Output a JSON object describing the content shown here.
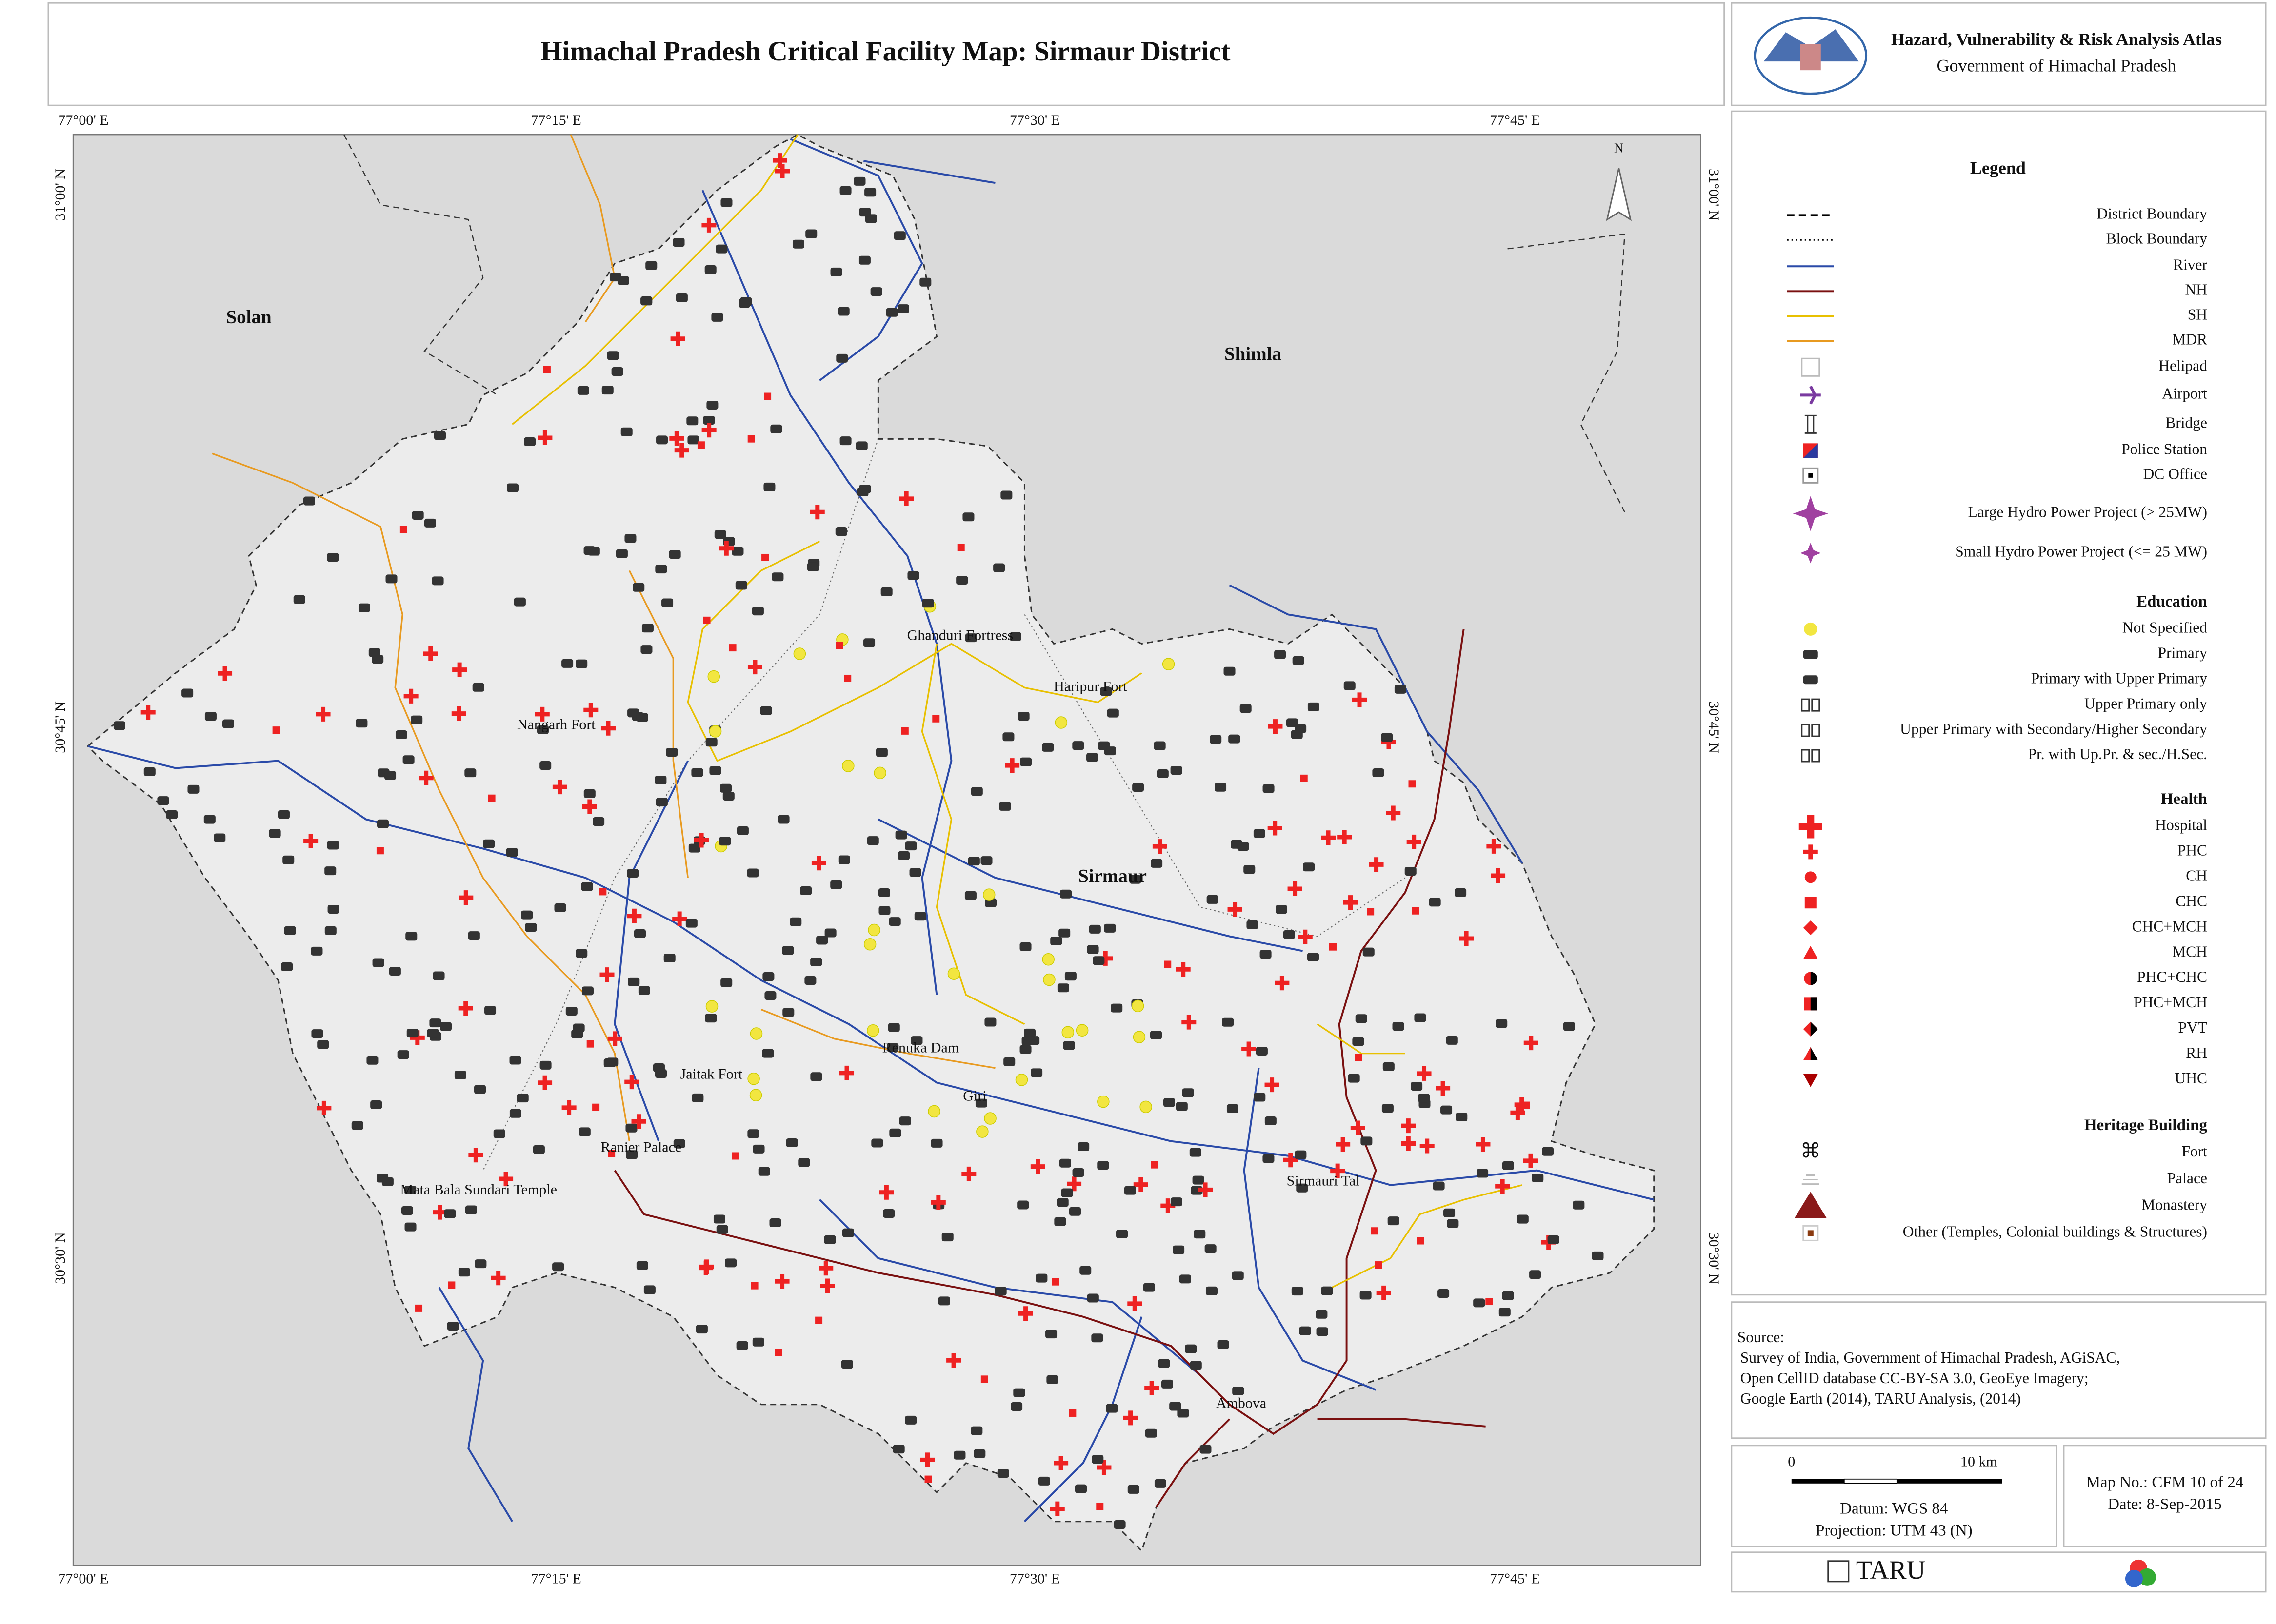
{
  "header": {
    "title": "Himachal Pradesh Critical Facility Map: Sirmaur District",
    "atlas": "Hazard, Vulnerability & Risk Analysis Atlas",
    "government": "Government of Himachal Pradesh"
  },
  "map": {
    "lon_labels": [
      "77°00' E",
      "77°15' E",
      "77°30' E",
      "77°45' E"
    ],
    "lat_labels": [
      "31°00' N",
      "30°45' N",
      "30°30' N"
    ],
    "north": "N",
    "districts": [
      "Solan",
      "Shimla",
      "Sirmaur"
    ],
    "landmarks": [
      "Nangarh Fort",
      "Ghanduri Fortress",
      "Haripur Fort",
      "Renuka Dam",
      "Giri",
      "Jaitak Fort",
      "Ranier Palace",
      "Mata Bala Sundari Temple",
      "Sirmauri Tal",
      "Ambova"
    ]
  },
  "legend": {
    "title": "Legend",
    "items": [
      "District Boundary",
      "Block Boundary",
      "River",
      "NH",
      "SH",
      "MDR",
      "Helipad",
      "Airport",
      "Bridge",
      "Police Station",
      "DC Office",
      "Large Hydro Power Project (> 25MW)",
      "Small Hydro Power Project (<= 25 MW)"
    ],
    "sections": [
      {
        "title": "Education",
        "items": [
          "Not Specified",
          "Primary",
          "Primary with Upper Primary",
          "Upper Primary only",
          "Upper Primary with Secondary/Higher Secondary",
          "Pr. with Up.Pr. & sec./H.Sec."
        ]
      },
      {
        "title": "Health",
        "items": [
          "Hospital",
          "PHC",
          "CH",
          "CHC",
          "CHC+MCH",
          "MCH",
          "PHC+CHC",
          "PHC+MCH",
          "PVT",
          "RH",
          "UHC"
        ]
      },
      {
        "title": "Heritage Building",
        "items": [
          "Fort",
          "Palace",
          "Monastery",
          "Other (Temples, Colonial buildings & Structures)"
        ]
      }
    ]
  },
  "source": {
    "title": "Source:",
    "lines": [
      "Survey of India, Government of Himachal Pradesh, AGiSAC,",
      "Open CellID database CC-BY-SA 3.0, GeoEye Imagery;",
      "Google Earth (2014), TARU Analysis, (2014)"
    ]
  },
  "scale": {
    "start": "0",
    "end": "10 km",
    "datum": "Datum: WGS 84",
    "projection": "Projection: UTM 43 (N)"
  },
  "map_info": {
    "number": "Map No.: CFM 10 of 24",
    "date": "Date: 8-Sep-2015"
  },
  "footer": {
    "logo": "TARU"
  }
}
